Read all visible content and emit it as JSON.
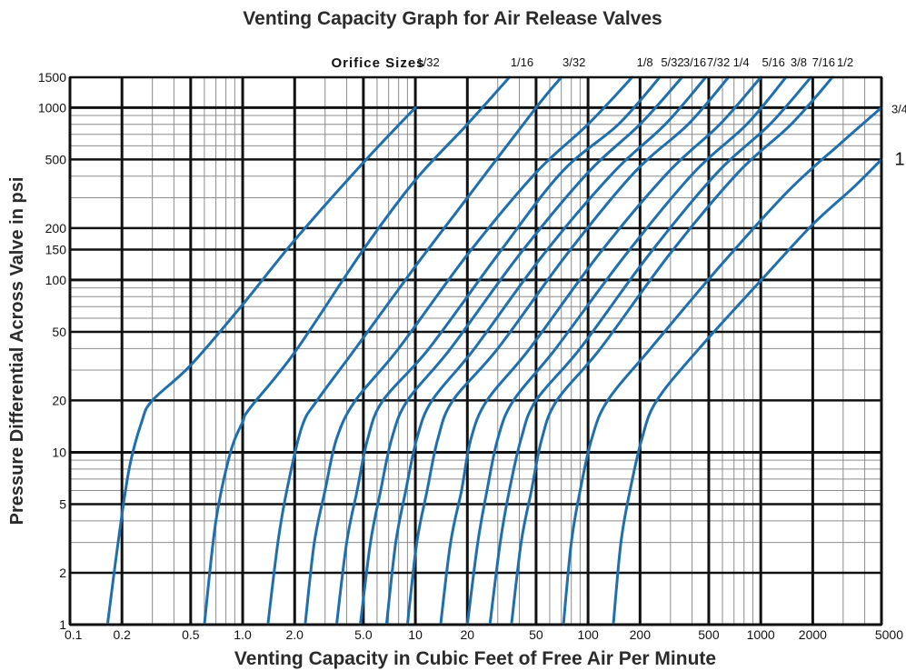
{
  "chart_data": {
    "type": "line",
    "title": "Venting Capacity Graph for Air Release Valves",
    "xlabel": "Venting Capacity in Cubic Feet of Free Air Per Minute",
    "ylabel": "Pressure Differential Across Valve in psi",
    "x_scale": "log",
    "y_scale": "log",
    "xlim": [
      0.1,
      5000
    ],
    "ylim": [
      1,
      1500
    ],
    "grid": true,
    "x_tick_labels": [
      "0.1",
      "0.2",
      "0.5",
      "1.0",
      "2.0",
      "5.0",
      "10",
      "20",
      "50",
      "100",
      "200",
      "500",
      "1000",
      "2000",
      "5000"
    ],
    "y_tick_labels": [
      "1",
      "2",
      "5",
      "10",
      "20",
      "50",
      "100",
      "150",
      "200",
      "500",
      "1000",
      "1500"
    ],
    "series_label_heading": "Orifice Sizes",
    "series": [
      {
        "name": "1/32",
        "x": [
          0.165,
          0.19,
          0.22,
          0.26,
          0.3,
          0.5,
          1.0,
          2.0,
          5.0,
          10
        ],
        "y": [
          1,
          3,
          8,
          15,
          20,
          32,
          72,
          170,
          480,
          1000
        ]
      },
      {
        "name": "1/16",
        "x": [
          0.6,
          0.7,
          0.85,
          1.0,
          1.1,
          2.0,
          5.0,
          10,
          20,
          35
        ],
        "y": [
          1,
          4,
          10,
          15,
          18,
          38,
          150,
          380,
          800,
          1500
        ]
      },
      {
        "name": "3/32",
        "x": [
          1.4,
          1.6,
          1.8,
          2.2,
          2.7,
          4.5,
          10,
          20,
          50,
          70
        ],
        "y": [
          1,
          3,
          6,
          14,
          20,
          40,
          120,
          300,
          1000,
          1500
        ]
      },
      {
        "name": "1/8",
        "x": [
          2.3,
          2.6,
          3.0,
          3.5,
          4.5,
          8,
          20,
          50,
          100,
          180
        ],
        "y": [
          1,
          3,
          6,
          12,
          20,
          40,
          140,
          420,
          800,
          1500
        ]
      },
      {
        "name": "5/32",
        "x": [
          3.5,
          4,
          4.6,
          5.3,
          6.5,
          12,
          30,
          70,
          150,
          260
        ],
        "y": [
          1,
          3,
          6,
          12,
          20,
          40,
          140,
          420,
          800,
          1500
        ]
      },
      {
        "name": "3/16",
        "x": [
          4.8,
          5.5,
          6.3,
          7.3,
          9,
          16,
          40,
          100,
          200,
          350
        ],
        "y": [
          1,
          3,
          6,
          12,
          20,
          40,
          140,
          420,
          800,
          1500
        ]
      },
      {
        "name": "7/32",
        "x": [
          6.8,
          7.7,
          8.8,
          10.2,
          12.5,
          22,
          55,
          140,
          280,
          480
        ],
        "y": [
          1,
          3,
          6,
          12,
          20,
          40,
          140,
          420,
          800,
          1500
        ]
      },
      {
        "name": "1/4",
        "x": [
          9,
          10.2,
          11.7,
          13.5,
          16.5,
          30,
          75,
          185,
          380,
          650
        ],
        "y": [
          1,
          3,
          6,
          12,
          20,
          40,
          140,
          420,
          800,
          1500
        ]
      },
      {
        "name": "5/16",
        "x": [
          14,
          16,
          18.5,
          21,
          26,
          46,
          115,
          290,
          580,
          1000
        ],
        "y": [
          1,
          3,
          6,
          12,
          20,
          40,
          140,
          420,
          800,
          1500
        ]
      },
      {
        "name": "3/8",
        "x": [
          20,
          23,
          26,
          30,
          37,
          65,
          165,
          410,
          830,
          1400
        ],
        "y": [
          1,
          3,
          6,
          12,
          20,
          40,
          140,
          420,
          800,
          1500
        ]
      },
      {
        "name": "7/16",
        "x": [
          27,
          31,
          35,
          41,
          50,
          90,
          225,
          560,
          1130,
          1950
        ],
        "y": [
          1,
          3,
          6,
          12,
          20,
          40,
          140,
          420,
          800,
          1500
        ]
      },
      {
        "name": "1/2",
        "x": [
          36,
          41,
          47,
          54,
          66,
          118,
          295,
          740,
          1500,
          2600
        ],
        "y": [
          1,
          3,
          6,
          12,
          20,
          40,
          140,
          420,
          800,
          1500
        ]
      },
      {
        "name": "3/4",
        "x": [
          72,
          80,
          90,
          105,
          130,
          230,
          580,
          1450,
          2900,
          5000
        ],
        "y": [
          1,
          3,
          6,
          12,
          20,
          40,
          120,
          330,
          620,
          1000
        ]
      },
      {
        "name": "1",
        "x": [
          140,
          155,
          175,
          205,
          250,
          440,
          1100,
          2000,
          3500,
          5000
        ],
        "y": [
          1,
          3,
          6,
          12,
          20,
          40,
          110,
          210,
          350,
          500
        ]
      }
    ],
    "series_labels_top": [
      "1/32",
      "1/16",
      "3/32",
      "1/8",
      "5/32",
      "3/16",
      "7/32",
      "1/4",
      "5/16",
      "3/8",
      "7/16",
      "1/2"
    ],
    "series_labels_right": [
      "3/4",
      "1"
    ],
    "line_color": "#1f6fad"
  }
}
